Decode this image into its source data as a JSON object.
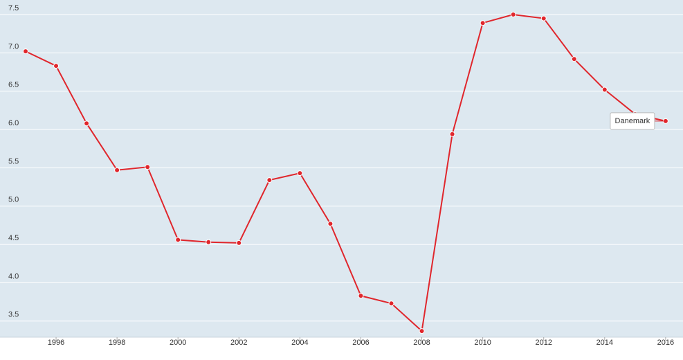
{
  "chart_data": {
    "type": "line",
    "x": [
      1995,
      1996,
      1997,
      1998,
      1999,
      2000,
      2001,
      2002,
      2003,
      2004,
      2005,
      2006,
      2007,
      2008,
      2009,
      2010,
      2011,
      2012,
      2013,
      2014,
      2015,
      2016
    ],
    "series": [
      {
        "name": "Danemark",
        "color": "#e0262c",
        "values": [
          7.02,
          6.83,
          6.08,
          5.47,
          5.51,
          4.56,
          4.53,
          4.52,
          5.34,
          5.43,
          4.77,
          3.83,
          3.73,
          3.37,
          5.94,
          7.39,
          7.5,
          7.45,
          6.92,
          6.52,
          6.2,
          6.11
        ]
      }
    ],
    "xlim": [
      1994.16,
      2016.57
    ],
    "xticks": [
      1996,
      1998,
      2000,
      2002,
      2004,
      2006,
      2008,
      2010,
      2012,
      2014,
      2016
    ],
    "ylim": [
      3.29,
      7.69
    ],
    "yticks": [
      3.5,
      {
        "value": 4,
        "label": "4.0"
      },
      4.5,
      {
        "value": 5,
        "label": "5.0"
      },
      5.5,
      {
        "value": 6,
        "label": "6.0"
      },
      6.5,
      {
        "value": 7,
        "label": "7.0"
      },
      7.5
    ],
    "grid": true
  }
}
